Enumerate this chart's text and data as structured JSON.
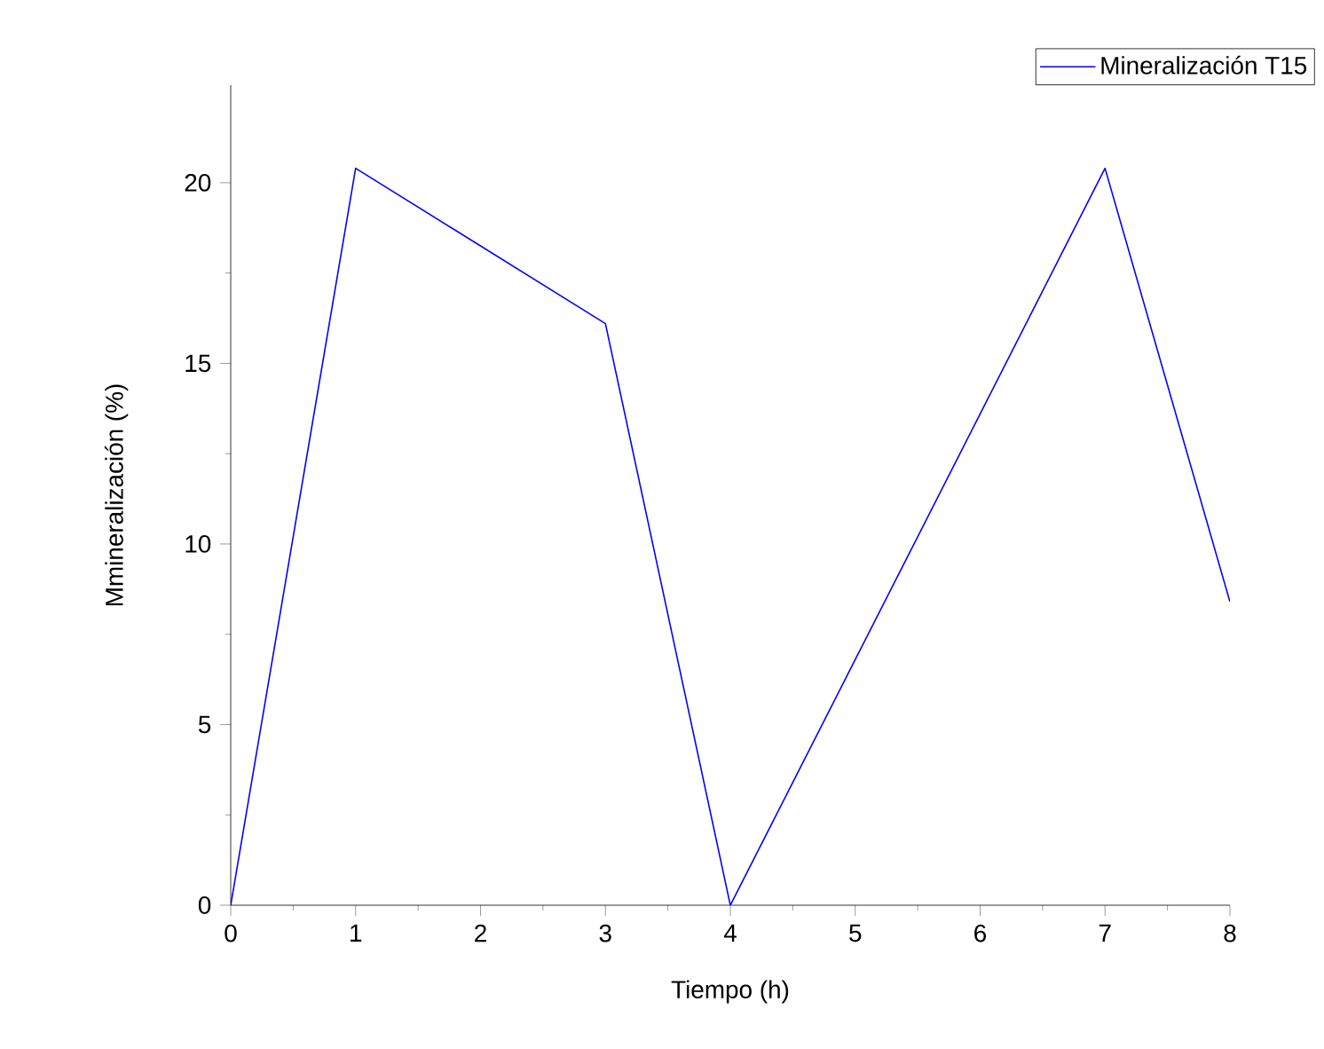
{
  "chart_data": {
    "type": "line",
    "xlabel": "Tiempo (h)",
    "ylabel": "Mmineralización (%)",
    "x": [
      0,
      1,
      3,
      4,
      7,
      8
    ],
    "series": [
      {
        "name": "Mineralización T15",
        "color": "#0000ff",
        "values": [
          0,
          20.4,
          16.1,
          0,
          20.4,
          8.4
        ]
      }
    ],
    "xlim": [
      0,
      8
    ],
    "ylim": [
      0,
      22.7
    ],
    "xticks": [
      0,
      1,
      2,
      3,
      4,
      5,
      6,
      7,
      8
    ],
    "yticks": [
      0,
      5,
      10,
      15,
      20
    ],
    "legend": "top right",
    "grid": false,
    "marker": "none",
    "line_style": "solid"
  }
}
